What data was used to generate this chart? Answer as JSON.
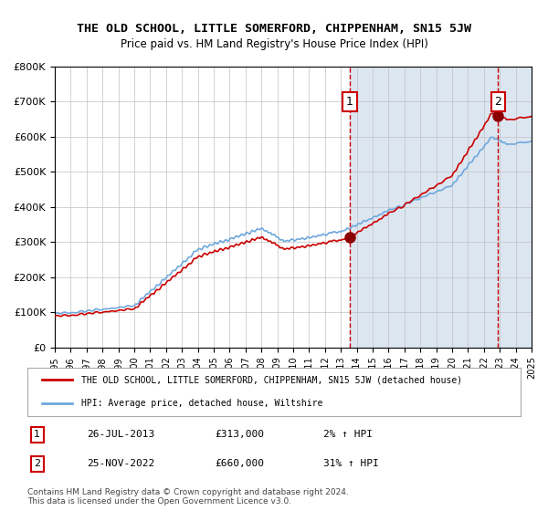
{
  "title": "THE OLD SCHOOL, LITTLE SOMERFORD, CHIPPENHAM, SN15 5JW",
  "subtitle": "Price paid vs. HM Land Registry's House Price Index (HPI)",
  "legend_line1": "THE OLD SCHOOL, LITTLE SOMERFORD, CHIPPENHAM, SN15 5JW (detached house)",
  "legend_line2": "HPI: Average price, detached house, Wiltshire",
  "annotation1_label": "1",
  "annotation1_date": "26-JUL-2013",
  "annotation1_price": "£313,000",
  "annotation1_hpi": "2% ↑ HPI",
  "annotation2_label": "2",
  "annotation2_date": "25-NOV-2022",
  "annotation2_price": "£660,000",
  "annotation2_hpi": "31% ↑ HPI",
  "footnote": "Contains HM Land Registry data © Crown copyright and database right 2024.\nThis data is licensed under the Open Government Licence v3.0.",
  "sale1_year": 2013.56,
  "sale1_value": 313000,
  "sale2_year": 2022.9,
  "sale2_value": 660000,
  "hpi_color": "#6fa8dc",
  "price_color": "#cc0000",
  "marker_color": "#8b0000",
  "dashed_color": "#cc0000",
  "highlight_color": "#dce6f1",
  "background_color": "#ffffff",
  "grid_color": "#c0c0c0",
  "ymin": 0,
  "ymax": 800000,
  "xmin": 1995,
  "xmax": 2025
}
